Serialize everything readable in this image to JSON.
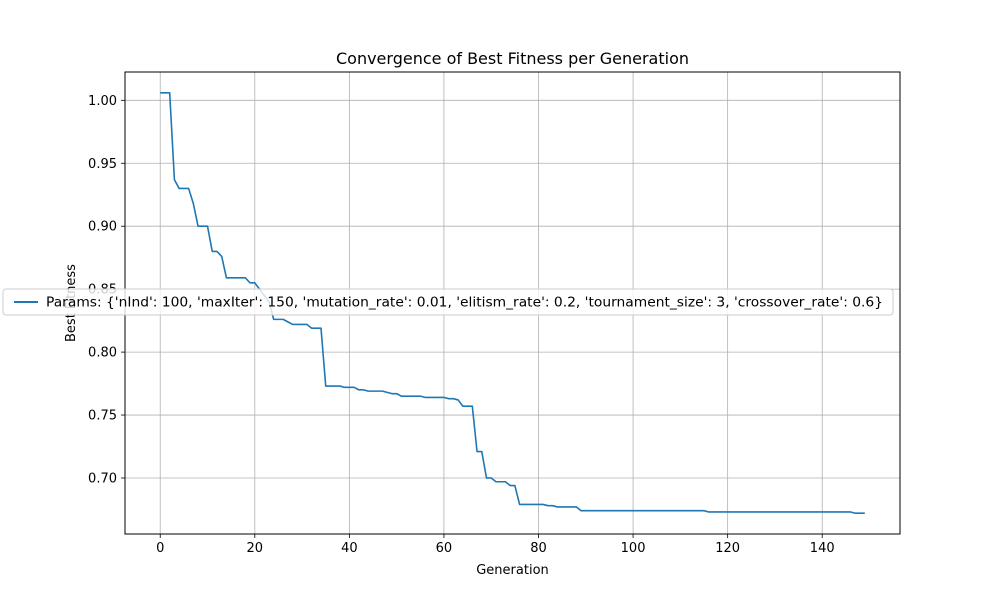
{
  "chart_data": {
    "type": "line",
    "title": "Convergence of Best Fitness per Generation",
    "xlabel": "Generation",
    "ylabel": "Best Fitness",
    "xlim": [
      -7.45,
      156.45
    ],
    "ylim": [
      0.6555,
      1.0225
    ],
    "xticks": [
      0,
      20,
      40,
      60,
      80,
      100,
      120,
      140
    ],
    "yticks": [
      0.7,
      0.75,
      0.8,
      0.85,
      0.9,
      0.95,
      1.0
    ],
    "ytick_labels": [
      "0.70",
      "0.75",
      "0.80",
      "0.85",
      "0.90",
      "0.95",
      "1.00"
    ],
    "grid": true,
    "legend_position": "center-left",
    "line_color": "#1f77b4",
    "series": [
      {
        "name": "Params: {'nInd': 100, 'maxIter': 150, 'mutation_rate': 0.01, 'elitism_rate': 0.2, 'tournament_size': 3, 'crossover_rate': 0.6}",
        "x": [
          0,
          1,
          2,
          3,
          4,
          5,
          6,
          7,
          8,
          9,
          10,
          11,
          12,
          13,
          14,
          15,
          16,
          17,
          18,
          19,
          20,
          21,
          22,
          23,
          24,
          25,
          26,
          27,
          28,
          29,
          30,
          31,
          32,
          33,
          34,
          35,
          36,
          37,
          38,
          39,
          40,
          41,
          42,
          43,
          44,
          45,
          46,
          47,
          48,
          49,
          50,
          51,
          52,
          53,
          54,
          55,
          56,
          57,
          58,
          59,
          60,
          61,
          62,
          63,
          64,
          65,
          66,
          67,
          68,
          69,
          70,
          71,
          72,
          73,
          74,
          75,
          76,
          77,
          78,
          79,
          80,
          81,
          82,
          83,
          84,
          85,
          86,
          87,
          88,
          89,
          90,
          91,
          92,
          93,
          94,
          95,
          96,
          97,
          98,
          99,
          100,
          101,
          102,
          103,
          104,
          105,
          106,
          107,
          108,
          109,
          110,
          111,
          112,
          113,
          114,
          115,
          116,
          117,
          118,
          119,
          120,
          121,
          122,
          123,
          124,
          125,
          126,
          127,
          128,
          129,
          130,
          131,
          132,
          133,
          134,
          135,
          136,
          137,
          138,
          139,
          140,
          141,
          142,
          143,
          144,
          145,
          146,
          147,
          148,
          149
        ],
        "y": [
          1.006,
          1.006,
          1.006,
          0.937,
          0.93,
          0.93,
          0.93,
          0.918,
          0.9,
          0.9,
          0.9,
          0.88,
          0.88,
          0.876,
          0.859,
          0.859,
          0.859,
          0.859,
          0.859,
          0.855,
          0.855,
          0.85,
          0.845,
          0.84,
          0.826,
          0.826,
          0.826,
          0.824,
          0.822,
          0.822,
          0.822,
          0.822,
          0.819,
          0.819,
          0.819,
          0.773,
          0.773,
          0.773,
          0.773,
          0.772,
          0.772,
          0.772,
          0.77,
          0.77,
          0.769,
          0.769,
          0.769,
          0.769,
          0.768,
          0.767,
          0.767,
          0.765,
          0.765,
          0.765,
          0.765,
          0.765,
          0.764,
          0.764,
          0.764,
          0.764,
          0.764,
          0.763,
          0.763,
          0.762,
          0.757,
          0.757,
          0.757,
          0.721,
          0.721,
          0.7,
          0.7,
          0.697,
          0.697,
          0.697,
          0.694,
          0.694,
          0.679,
          0.679,
          0.679,
          0.679,
          0.679,
          0.679,
          0.678,
          0.678,
          0.677,
          0.677,
          0.677,
          0.677,
          0.677,
          0.674,
          0.674,
          0.674,
          0.674,
          0.674,
          0.674,
          0.674,
          0.674,
          0.674,
          0.674,
          0.674,
          0.674,
          0.674,
          0.674,
          0.674,
          0.674,
          0.674,
          0.674,
          0.674,
          0.674,
          0.674,
          0.674,
          0.674,
          0.674,
          0.674,
          0.674,
          0.674,
          0.673,
          0.673,
          0.673,
          0.673,
          0.673,
          0.673,
          0.673,
          0.673,
          0.673,
          0.673,
          0.673,
          0.673,
          0.673,
          0.673,
          0.673,
          0.673,
          0.673,
          0.673,
          0.673,
          0.673,
          0.673,
          0.673,
          0.673,
          0.673,
          0.673,
          0.673,
          0.673,
          0.673,
          0.673,
          0.673,
          0.673,
          0.672,
          0.672,
          0.672
        ]
      }
    ]
  }
}
